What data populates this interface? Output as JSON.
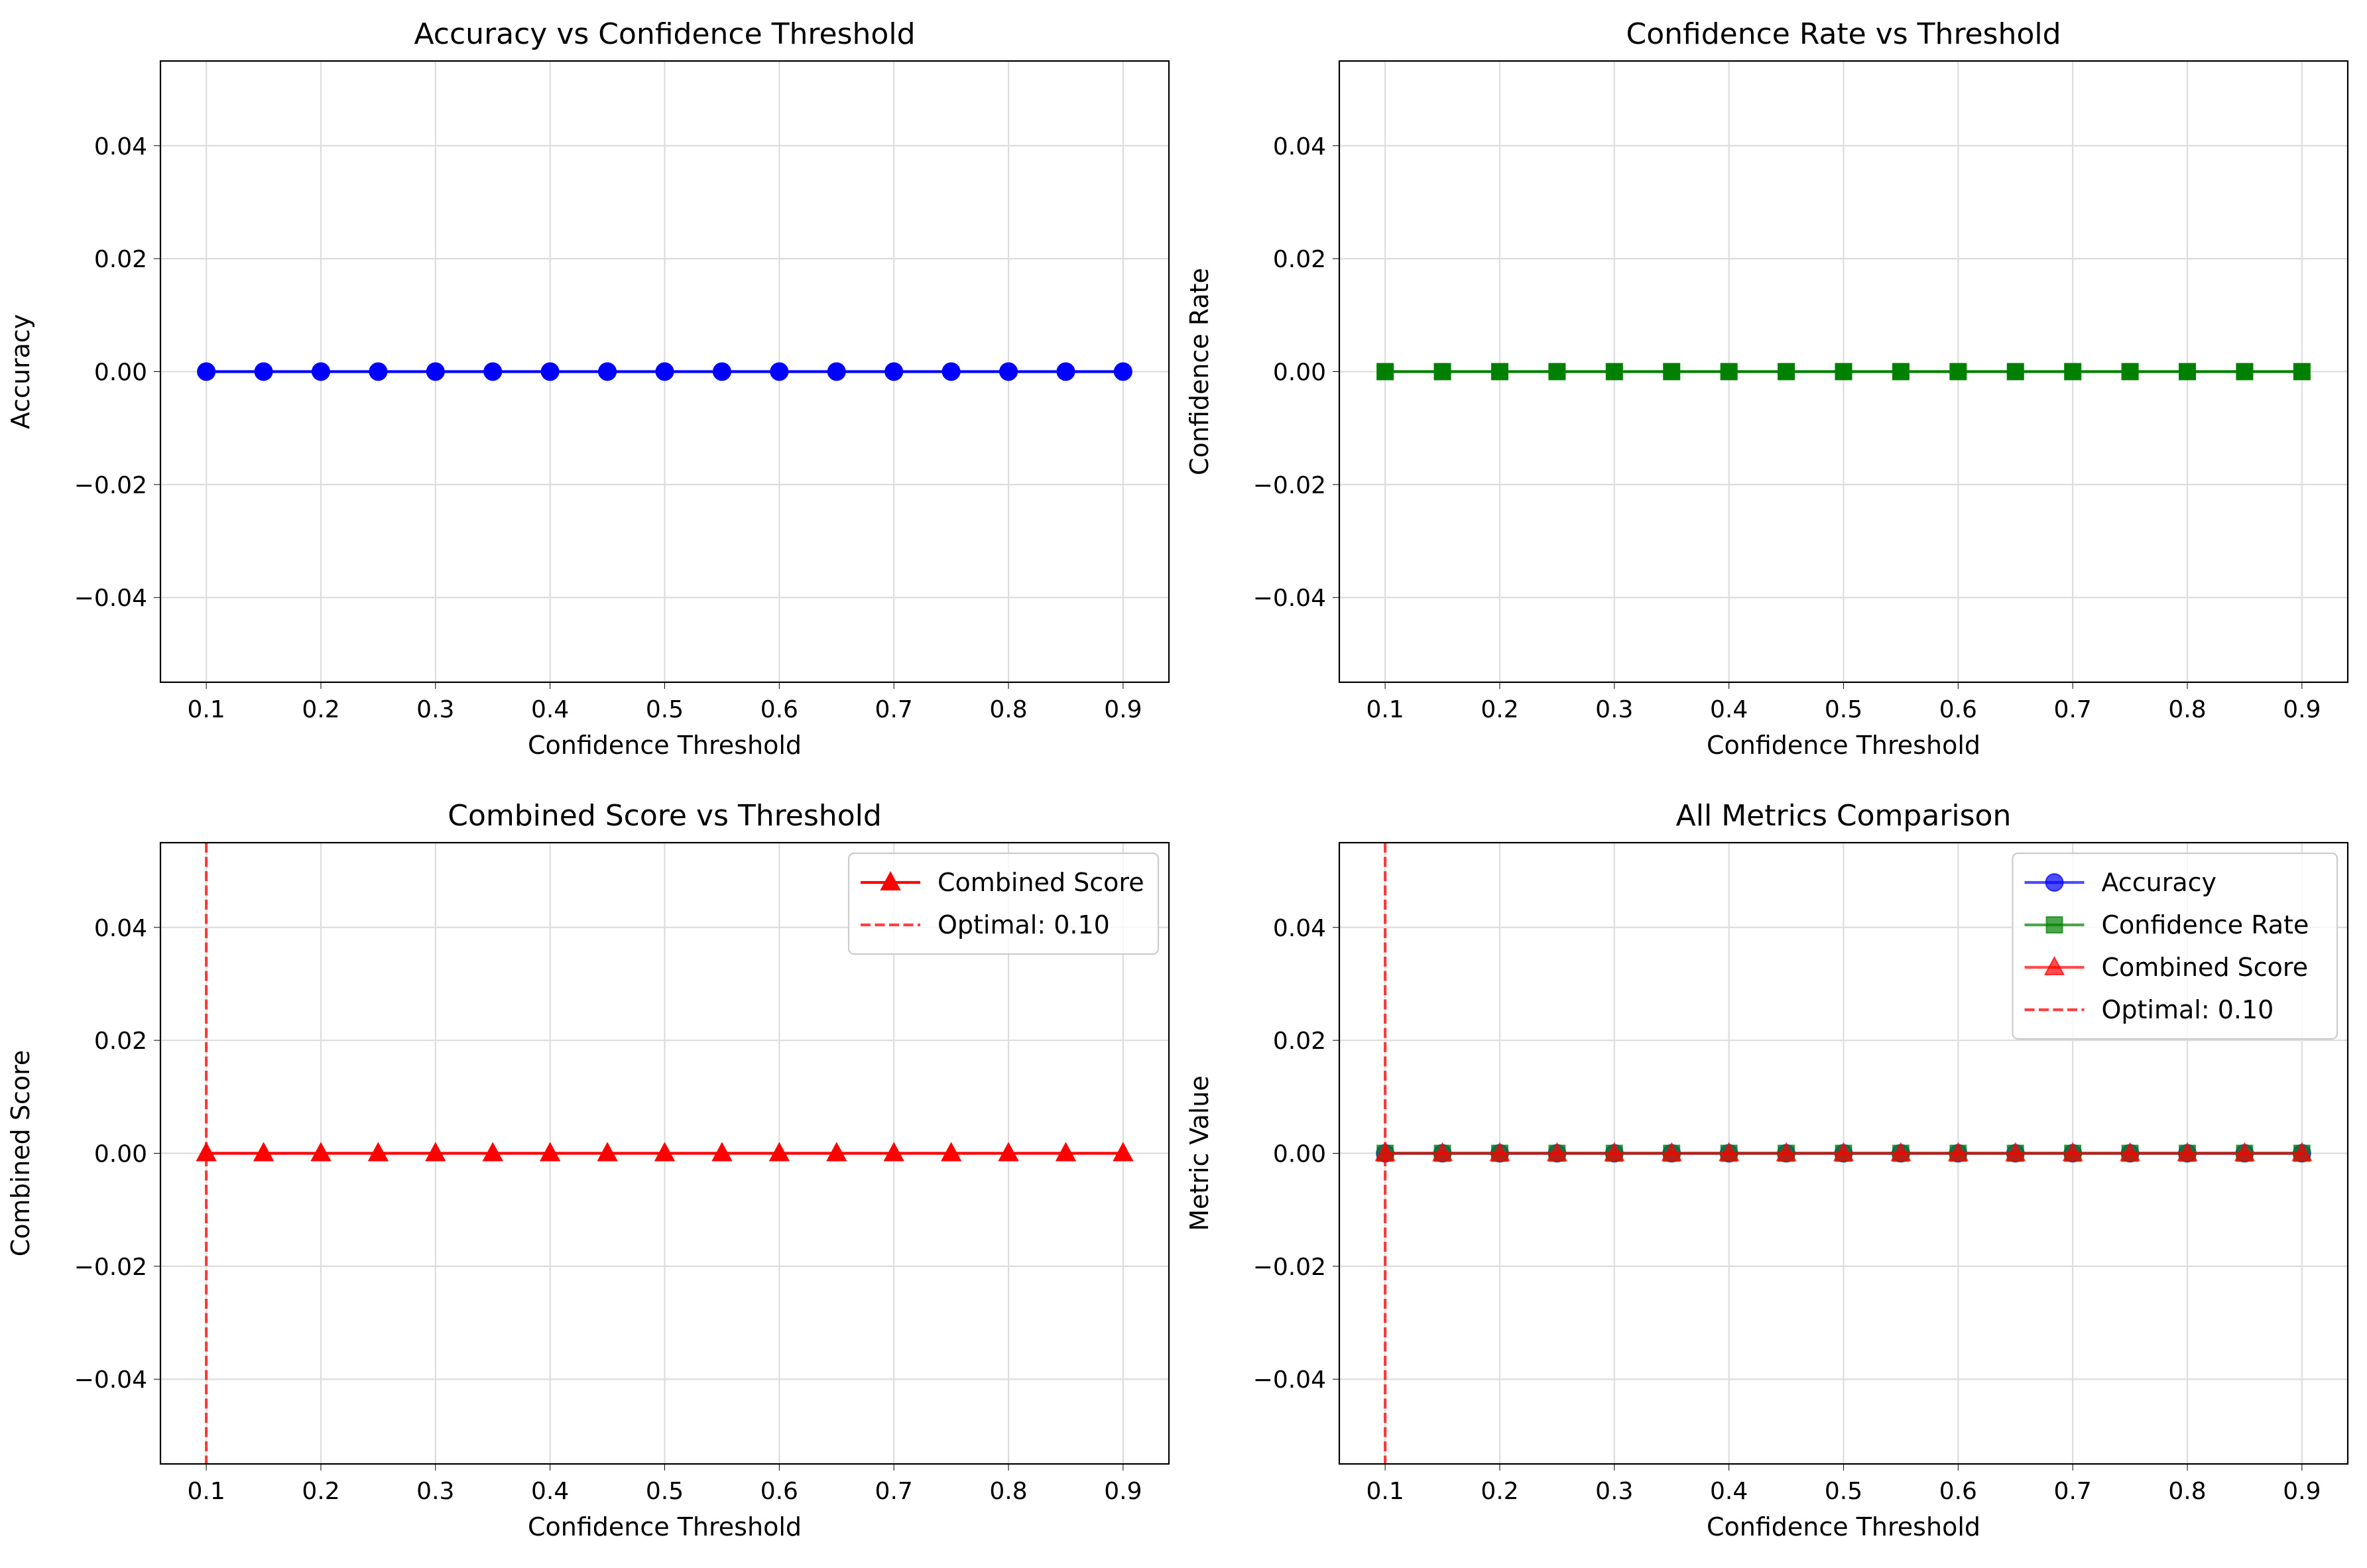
{
  "colors": {
    "accuracy": "#0000ff",
    "confidence_rate": "#008000",
    "combined_score": "#ff0000",
    "grid": "#dddddd",
    "axis": "#000000"
  },
  "chart_data": [
    {
      "id": "accuracy",
      "type": "line",
      "title": "Accuracy vs Confidence Threshold",
      "xlabel": "Confidence Threshold",
      "ylabel": "Accuracy",
      "xlim": [
        0.06,
        0.94
      ],
      "ylim": [
        -0.055,
        0.055
      ],
      "xticks": [
        0.1,
        0.2,
        0.3,
        0.4,
        0.5,
        0.6,
        0.7,
        0.8,
        0.9
      ],
      "xtick_labels": [
        "0.1",
        "0.2",
        "0.3",
        "0.4",
        "0.5",
        "0.6",
        "0.7",
        "0.8",
        "0.9"
      ],
      "yticks": [
        -0.04,
        -0.02,
        0.0,
        0.02,
        0.04
      ],
      "ytick_labels": [
        "−0.04",
        "−0.02",
        "0.00",
        "0.02",
        "0.04"
      ],
      "grid": true,
      "x": [
        0.1,
        0.15,
        0.2,
        0.25,
        0.3,
        0.35,
        0.4,
        0.45,
        0.5,
        0.55,
        0.6,
        0.65,
        0.7,
        0.75,
        0.8,
        0.85,
        0.9
      ],
      "series": [
        {
          "name": "",
          "color": "#0000ff",
          "marker": "circle",
          "alpha": 1.0,
          "values": [
            0,
            0,
            0,
            0,
            0,
            0,
            0,
            0,
            0,
            0,
            0,
            0,
            0,
            0,
            0,
            0,
            0
          ]
        }
      ],
      "vlines": [],
      "legend": null
    },
    {
      "id": "confidence-rate",
      "type": "line",
      "title": "Confidence Rate vs Threshold",
      "xlabel": "Confidence Threshold",
      "ylabel": "Confidence Rate",
      "xlim": [
        0.06,
        0.94
      ],
      "ylim": [
        -0.055,
        0.055
      ],
      "xticks": [
        0.1,
        0.2,
        0.3,
        0.4,
        0.5,
        0.6,
        0.7,
        0.8,
        0.9
      ],
      "xtick_labels": [
        "0.1",
        "0.2",
        "0.3",
        "0.4",
        "0.5",
        "0.6",
        "0.7",
        "0.8",
        "0.9"
      ],
      "yticks": [
        -0.04,
        -0.02,
        0.0,
        0.02,
        0.04
      ],
      "ytick_labels": [
        "−0.04",
        "−0.02",
        "0.00",
        "0.02",
        "0.04"
      ],
      "grid": true,
      "x": [
        0.1,
        0.15,
        0.2,
        0.25,
        0.3,
        0.35,
        0.4,
        0.45,
        0.5,
        0.55,
        0.6,
        0.65,
        0.7,
        0.75,
        0.8,
        0.85,
        0.9
      ],
      "series": [
        {
          "name": "",
          "color": "#008000",
          "marker": "square",
          "alpha": 1.0,
          "values": [
            0,
            0,
            0,
            0,
            0,
            0,
            0,
            0,
            0,
            0,
            0,
            0,
            0,
            0,
            0,
            0,
            0
          ]
        }
      ],
      "vlines": [],
      "legend": null
    },
    {
      "id": "combined-score",
      "type": "line",
      "title": "Combined Score vs Threshold",
      "xlabel": "Confidence Threshold",
      "ylabel": "Combined Score",
      "xlim": [
        0.06,
        0.94
      ],
      "ylim": [
        -0.055,
        0.055
      ],
      "xticks": [
        0.1,
        0.2,
        0.3,
        0.4,
        0.5,
        0.6,
        0.7,
        0.8,
        0.9
      ],
      "xtick_labels": [
        "0.1",
        "0.2",
        "0.3",
        "0.4",
        "0.5",
        "0.6",
        "0.7",
        "0.8",
        "0.9"
      ],
      "yticks": [
        -0.04,
        -0.02,
        0.0,
        0.02,
        0.04
      ],
      "ytick_labels": [
        "−0.04",
        "−0.02",
        "0.00",
        "0.02",
        "0.04"
      ],
      "grid": true,
      "x": [
        0.1,
        0.15,
        0.2,
        0.25,
        0.3,
        0.35,
        0.4,
        0.45,
        0.5,
        0.55,
        0.6,
        0.65,
        0.7,
        0.75,
        0.8,
        0.85,
        0.9
      ],
      "series": [
        {
          "name": "Combined Score",
          "color": "#ff0000",
          "marker": "triangle",
          "alpha": 1.0,
          "values": [
            0,
            0,
            0,
            0,
            0,
            0,
            0,
            0,
            0,
            0,
            0,
            0,
            0,
            0,
            0,
            0,
            0
          ]
        }
      ],
      "vlines": [
        {
          "name": "Optimal: 0.10",
          "x": 0.1,
          "color": "#ff0000",
          "alpha": 0.75,
          "dashed": true
        }
      ],
      "legend": "top-right"
    },
    {
      "id": "all-metrics",
      "type": "line",
      "title": "All Metrics Comparison",
      "xlabel": "Confidence Threshold",
      "ylabel": "Metric Value",
      "xlim": [
        0.06,
        0.94
      ],
      "ylim": [
        -0.055,
        0.055
      ],
      "xticks": [
        0.1,
        0.2,
        0.3,
        0.4,
        0.5,
        0.6,
        0.7,
        0.8,
        0.9
      ],
      "xtick_labels": [
        "0.1",
        "0.2",
        "0.3",
        "0.4",
        "0.5",
        "0.6",
        "0.7",
        "0.8",
        "0.9"
      ],
      "yticks": [
        -0.04,
        -0.02,
        0.0,
        0.02,
        0.04
      ],
      "ytick_labels": [
        "−0.04",
        "−0.02",
        "0.00",
        "0.02",
        "0.04"
      ],
      "grid": true,
      "x": [
        0.1,
        0.15,
        0.2,
        0.25,
        0.3,
        0.35,
        0.4,
        0.45,
        0.5,
        0.55,
        0.6,
        0.65,
        0.7,
        0.75,
        0.8,
        0.85,
        0.9
      ],
      "series": [
        {
          "name": "Accuracy",
          "color": "#0000ff",
          "marker": "circle",
          "alpha": 0.7,
          "values": [
            0,
            0,
            0,
            0,
            0,
            0,
            0,
            0,
            0,
            0,
            0,
            0,
            0,
            0,
            0,
            0,
            0
          ]
        },
        {
          "name": "Confidence Rate",
          "color": "#008000",
          "marker": "square",
          "alpha": 0.7,
          "values": [
            0,
            0,
            0,
            0,
            0,
            0,
            0,
            0,
            0,
            0,
            0,
            0,
            0,
            0,
            0,
            0,
            0
          ]
        },
        {
          "name": "Combined Score",
          "color": "#ff0000",
          "marker": "triangle",
          "alpha": 0.7,
          "values": [
            0,
            0,
            0,
            0,
            0,
            0,
            0,
            0,
            0,
            0,
            0,
            0,
            0,
            0,
            0,
            0,
            0
          ]
        }
      ],
      "vlines": [
        {
          "name": "Optimal: 0.10",
          "x": 0.1,
          "color": "#ff0000",
          "alpha": 0.75,
          "dashed": true
        }
      ],
      "legend": "top-right"
    }
  ]
}
